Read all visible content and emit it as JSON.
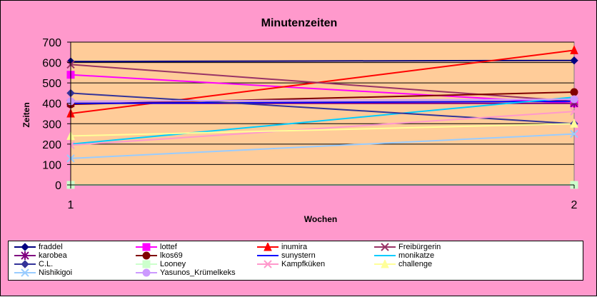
{
  "chart_data": {
    "type": "line",
    "title": "Minutenzeiten",
    "xlabel": "Wochen",
    "ylabel": "Zeiten",
    "categories": [
      "1",
      "2"
    ],
    "ylim": [
      0,
      700
    ],
    "yticks": [
      "0",
      "100",
      "200",
      "300",
      "400",
      "500",
      "600",
      "700"
    ],
    "grid": true,
    "legend_position": "bottom",
    "plot_background": "#ffcc99",
    "chart_background": "#ff99cc",
    "series": [
      {
        "name": "fraddel",
        "values": [
          605,
          610
        ],
        "color": "#000080",
        "marker": "diamond"
      },
      {
        "name": "lottef",
        "values": [
          540,
          400
        ],
        "color": "#ff00ff",
        "marker": "square"
      },
      {
        "name": "inumira",
        "values": [
          350,
          660
        ],
        "color": "#ff0000",
        "marker": "triangle"
      },
      {
        "name": "Freibürgerin",
        "values": [
          590,
          410
        ],
        "color": "#993366",
        "marker": "x"
      },
      {
        "name": "karobea",
        "values": [
          400,
          400
        ],
        "color": "#800080",
        "marker": "star"
      },
      {
        "name": "lkos69",
        "values": [
          395,
          455
        ],
        "color": "#800000",
        "marker": "circle"
      },
      {
        "name": "sunystern",
        "values": [
          400,
          410
        ],
        "color": "#0000ff",
        "marker": "none"
      },
      {
        "name": "monikatze",
        "values": [
          200,
          430
        ],
        "color": "#00ccff",
        "marker": "none"
      },
      {
        "name": "C.L.",
        "values": [
          450,
          300
        ],
        "color": "#333399",
        "marker": "diamond"
      },
      {
        "name": "Looney",
        "values": [
          0,
          0
        ],
        "color": "#ccffcc",
        "marker": "square"
      },
      {
        "name": "Kampfküken",
        "values": [
          195,
          360
        ],
        "color": "#ff99cc",
        "marker": "x"
      },
      {
        "name": "challenge",
        "values": [
          240,
          300
        ],
        "color": "#ffff99",
        "marker": "triangle"
      },
      {
        "name": "Nishikigoi",
        "values": [
          130,
          250
        ],
        "color": "#99ccff",
        "marker": "x"
      },
      {
        "name": "Yasunos_Krümelkeks",
        "values": [
          410,
          420
        ],
        "color": "#cc99ff",
        "marker": "circle"
      }
    ]
  }
}
